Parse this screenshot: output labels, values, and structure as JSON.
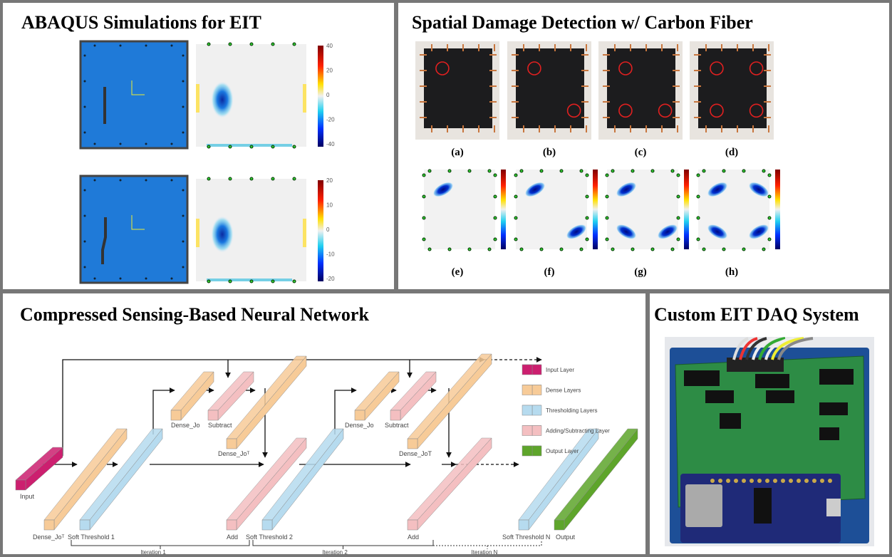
{
  "panels": [
    {
      "title": "ABAQUS Simulations for EIT",
      "colorbars": [
        [
          "40",
          "20",
          "0",
          "-20",
          "-40"
        ],
        [
          "20",
          "10",
          "0",
          "-10",
          "-20"
        ]
      ]
    },
    {
      "title": "Spatial Damage Detection w/ Carbon Fiber",
      "labels": [
        "(a)",
        "(b)",
        "(c)",
        "(d)",
        "(e)",
        "(f)",
        "(g)",
        "(h)"
      ]
    },
    {
      "title": "Compressed Sensing-Based Neural Network",
      "legend": [
        {
          "label": "Input Layer",
          "color": "#cc1f6f"
        },
        {
          "label": "Dense Layers",
          "color": "#f7cb98"
        },
        {
          "label": "Thresholding Layers",
          "color": "#b6dbef"
        },
        {
          "label": "Adding/Subtracting Layer",
          "color": "#f4bfc1"
        },
        {
          "label": "Output Layer",
          "color": "#5ea52b"
        }
      ],
      "nodes": [
        {
          "label": "Input",
          "color": "#cc1f6f"
        },
        {
          "label": "Dense_Joᵀ",
          "color": "#f7cb98"
        },
        {
          "label": "Soft Threshold 1",
          "color": "#b6dbef"
        },
        {
          "label": "Dense_Jo",
          "color": "#f7cb98"
        },
        {
          "label": "Subtract",
          "color": "#f4bfc1"
        },
        {
          "label": "Dense_Joᵀ",
          "color": "#f7cb98"
        },
        {
          "label": "Add",
          "color": "#f4bfc1"
        },
        {
          "label": "Soft Threshold 2",
          "color": "#b6dbef"
        },
        {
          "label": "Dense_Jo",
          "color": "#f7cb98"
        },
        {
          "label": "Subtract",
          "color": "#f4bfc1"
        },
        {
          "label": "Dense_JoT",
          "color": "#f7cb98"
        },
        {
          "label": "Add",
          "color": "#f4bfc1"
        },
        {
          "label": "Soft Threshold N",
          "color": "#b6dbef"
        },
        {
          "label": "Output",
          "color": "#5ea52b"
        }
      ],
      "iterations": [
        "Iteration 1",
        "Iteration 2",
        "Iteration N"
      ]
    },
    {
      "title": "Custom EIT DAQ System"
    }
  ]
}
